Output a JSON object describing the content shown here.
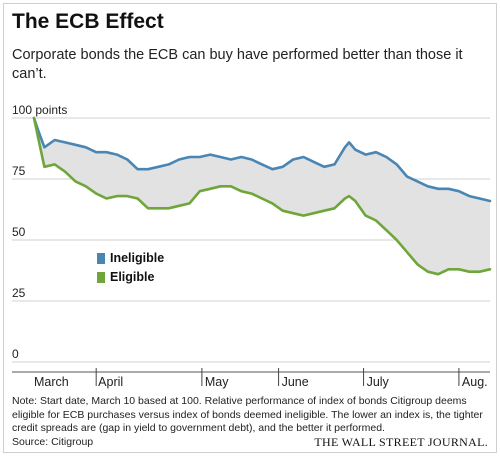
{
  "title": "The ECB Effect",
  "subtitle": "Corporate bonds the ECB can buy have performed better than those it can’t.",
  "note": "Note: Start date, March 10 based at 100. Relative performance of index of bonds Citigroup deems eligible for ECB purchases versus index of bonds deemed ineligible. The lower an index is, the tighter credit spreads are (gap in yield to government debt), and the better it performed.",
  "source": "Source: Citigroup",
  "publisher": "THE WALL STREET JOURNAL.",
  "chart_data": {
    "type": "line",
    "ylim": [
      0,
      100
    ],
    "yticks": [
      "100 points",
      "75",
      "50",
      "25",
      "0"
    ],
    "ytick_values": [
      100,
      75,
      50,
      25,
      0
    ],
    "month_labels": [
      "March",
      "April",
      "May",
      "June",
      "July",
      "Aug."
    ],
    "grid": true,
    "fill_between": true,
    "legend_position": "left-middle",
    "series": [
      {
        "name": "Ineligible",
        "color": "#4a86b4",
        "x": [
          0,
          2,
          5,
          10,
          15,
          20,
          25,
          30,
          35,
          40,
          45,
          50,
          55,
          60,
          65,
          70,
          75,
          80,
          85,
          90,
          95,
          100,
          105,
          110,
          115,
          120,
          125,
          130,
          135,
          140,
          145,
          150,
          152,
          155,
          160,
          165,
          170,
          175,
          180,
          185,
          190,
          195,
          200,
          205,
          210,
          215,
          220
        ],
        "y": [
          100,
          95,
          88,
          91,
          90,
          89,
          88,
          86,
          86,
          85,
          83,
          79,
          79,
          80,
          81,
          83,
          84,
          84,
          85,
          84,
          83,
          84,
          83,
          81,
          79,
          80,
          83,
          84,
          82,
          80,
          81,
          88,
          90,
          87,
          85,
          86,
          84,
          81,
          76,
          74,
          72,
          71,
          71,
          70,
          68,
          67,
          66
        ]
      },
      {
        "name": "Eligible",
        "color": "#6fa63a",
        "x": [
          0,
          2,
          5,
          10,
          15,
          20,
          25,
          30,
          35,
          40,
          45,
          50,
          55,
          60,
          65,
          70,
          75,
          80,
          85,
          90,
          95,
          100,
          105,
          110,
          115,
          120,
          125,
          130,
          135,
          140,
          145,
          150,
          152,
          155,
          160,
          165,
          170,
          175,
          180,
          185,
          190,
          195,
          200,
          205,
          210,
          215,
          220
        ],
        "y": [
          100,
          92,
          80,
          81,
          78,
          74,
          72,
          69,
          67,
          68,
          68,
          67,
          63,
          63,
          63,
          64,
          65,
          70,
          71,
          72,
          72,
          70,
          69,
          67,
          65,
          62,
          61,
          60,
          61,
          62,
          63,
          67,
          68,
          66,
          60,
          58,
          54,
          50,
          45,
          40,
          37,
          36,
          38,
          38,
          37,
          37,
          38
        ]
      }
    ]
  }
}
